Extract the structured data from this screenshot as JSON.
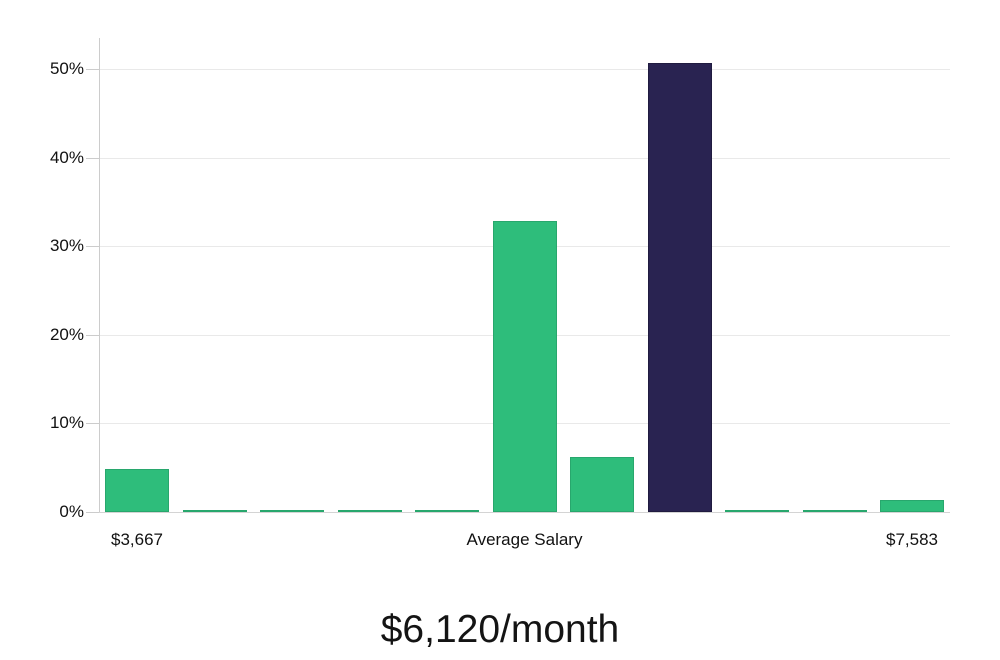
{
  "chart_data": {
    "type": "bar",
    "title": "$6,120/month",
    "description": "Salary distribution histogram with highlighted median bar",
    "ylabel": "",
    "xlabel": "",
    "ylim": [
      0,
      52
    ],
    "grid": true,
    "legend": false,
    "y_ticks": [
      {
        "label": "0%",
        "value": 0
      },
      {
        "label": "10%",
        "value": 10
      },
      {
        "label": "20%",
        "value": 20
      },
      {
        "label": "30%",
        "value": 30
      },
      {
        "label": "40%",
        "value": 40
      },
      {
        "label": "50%",
        "value": 50
      }
    ],
    "values": [
      4.9,
      0.2,
      0.2,
      0.2,
      0.2,
      32.9,
      6.2,
      50.7,
      0.2,
      0.2,
      1.3
    ],
    "highlight_index": 7,
    "x_tick_labels": [
      {
        "text": "$3,667",
        "bar_index": 0
      },
      {
        "text": "Average Salary",
        "position": "center"
      },
      {
        "text": "$7,583",
        "bar_index": 10
      }
    ],
    "colors": {
      "bar_fill": "#2ebd7b",
      "bar_border": "#28a76d",
      "highlight_fill": "#292351",
      "highlight_border": "#201b40",
      "gridline": "#e9e9e9",
      "axis": "#cccccc",
      "text": "#111111"
    }
  }
}
